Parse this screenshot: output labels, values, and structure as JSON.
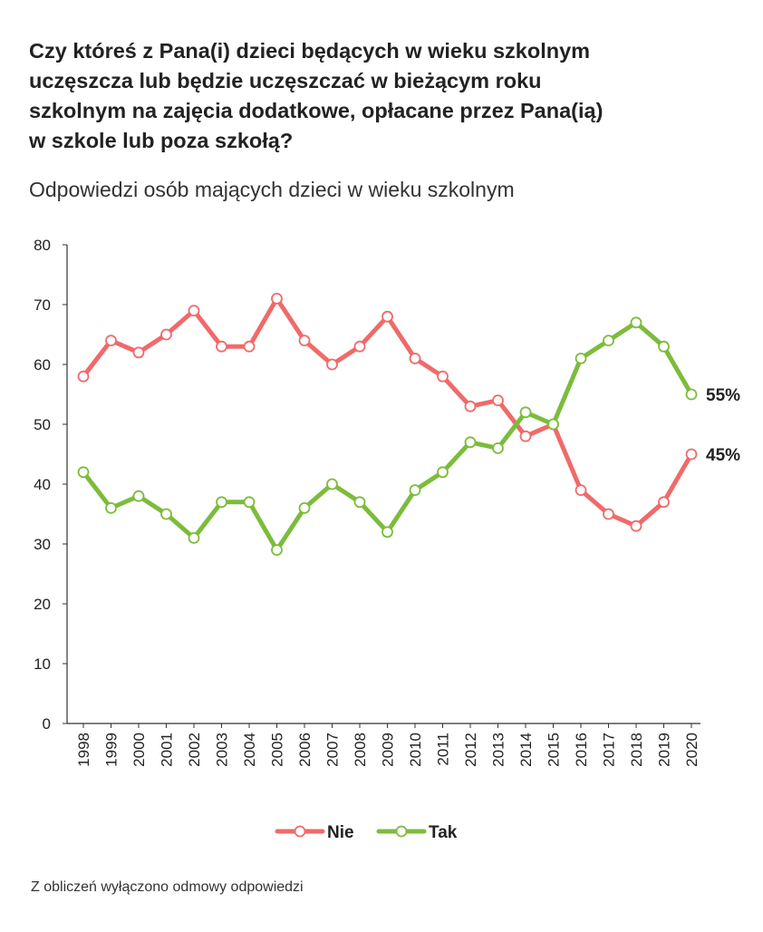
{
  "title_lines": [
    "Czy któreś z Pana(i) dzieci będących w wieku szkolnym",
    "uczęszcza lub będzie uczęszczać w bieżącym roku",
    "szkolnym na zajęcia dodatkowe, opłacane przez Pana(ią)",
    "w szkole lub poza szkołą?"
  ],
  "subtitle": "Odpowiedzi osób mających dzieci  w wieku szkolnym",
  "footnote": "Z obliczeń wyłączono odmowy odpowiedzi",
  "chart_data": {
    "type": "line",
    "x": [
      "1998",
      "1999",
      "2000",
      "2001",
      "2002",
      "2003",
      "2004",
      "2005",
      "2006",
      "2007",
      "2008",
      "2009",
      "2010",
      "2011",
      "2012",
      "2013",
      "2014",
      "2015",
      "2016",
      "2017",
      "2018",
      "2019",
      "2020"
    ],
    "ylim": [
      0,
      80
    ],
    "yticks": [
      0,
      10,
      20,
      30,
      40,
      50,
      60,
      70,
      80
    ],
    "grid": false,
    "legend_position": "bottom",
    "series": [
      {
        "name": "Nie",
        "color": "#f06a6a",
        "values": [
          58,
          64,
          62,
          65,
          69,
          63,
          63,
          71,
          64,
          60,
          63,
          68,
          61,
          58,
          53,
          54,
          48,
          50,
          39,
          35,
          33,
          37,
          45
        ],
        "end_label": "45%"
      },
      {
        "name": "Tak",
        "color": "#7cbc3c",
        "values": [
          42,
          36,
          38,
          35,
          31,
          37,
          37,
          29,
          36,
          40,
          37,
          32,
          39,
          42,
          47,
          46,
          52,
          50,
          61,
          64,
          67,
          63,
          55
        ],
        "end_label": "55%"
      }
    ]
  }
}
